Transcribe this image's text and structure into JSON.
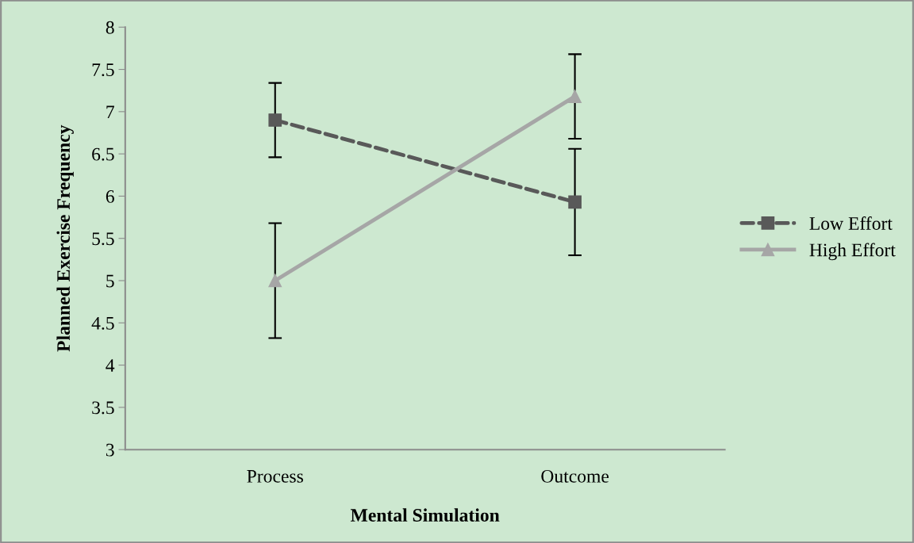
{
  "chart_data": {
    "type": "line",
    "xlabel": "Mental Simulation",
    "ylabel": "Planned Exercise Frequency",
    "categories": [
      "Process",
      "Outcome"
    ],
    "series": [
      {
        "name": "Low Effort",
        "color": "#595959",
        "values": [
          6.9,
          5.93
        ],
        "errors": [
          0.44,
          0.63
        ],
        "marker": "square",
        "line_style": "dashed"
      },
      {
        "name": "High Effort",
        "color": "#a6a6a6",
        "values": [
          5.0,
          7.18
        ],
        "errors": [
          0.68,
          0.5
        ],
        "marker": "triangle",
        "line_style": "solid"
      }
    ],
    "ylim": [
      3,
      8
    ],
    "yticks": [
      3,
      3.5,
      4,
      4.5,
      5,
      5.5,
      6,
      6.5,
      7,
      7.5,
      8
    ],
    "grid": false,
    "legend": "right"
  }
}
